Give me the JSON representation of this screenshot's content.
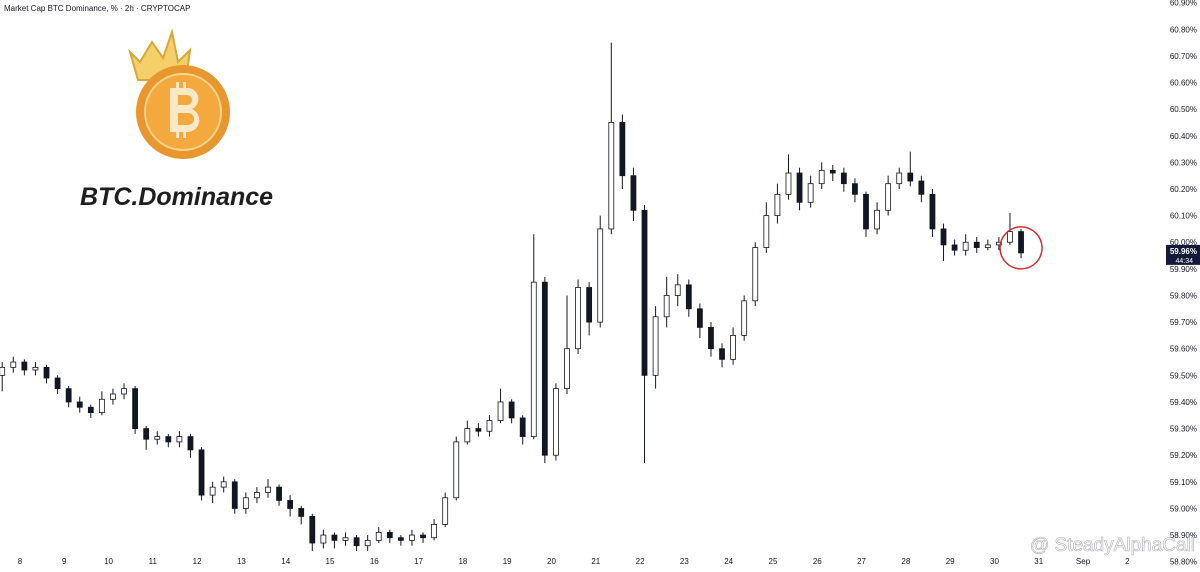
{
  "chart_data": {
    "type": "candlestick",
    "title": "Market Cap BTC Dominance, % · 2h · CRYPTOCAP",
    "logo_text": "BTC.Dominance",
    "last_price": {
      "value": 59.96,
      "label": "59.96%"
    },
    "countdown": "44:34",
    "watermark": "@ SteadyAlphaCall",
    "up_color": "#ffffff",
    "down_color": "#131722",
    "edge_color": "#131722",
    "xlim": [
      7.55,
      33.85
    ],
    "xticks": [
      8,
      9,
      10,
      11,
      12,
      13,
      14,
      15,
      16,
      17,
      18,
      19,
      20,
      21,
      22,
      23,
      24,
      25,
      26,
      27,
      28,
      29,
      30,
      31,
      {
        "value": 32,
        "label": "Sep"
      },
      {
        "value": 33,
        "label": "2"
      }
    ],
    "ylim": [
      58.78,
      60.91
    ],
    "yticks": [
      {
        "value": 58.8,
        "label": "58.80%"
      },
      {
        "value": 58.9,
        "label": "58.90%"
      },
      {
        "value": 59,
        "label": "59.00%"
      },
      {
        "value": 59.1,
        "label": "59.10%"
      },
      {
        "value": 59.2,
        "label": "59.20%"
      },
      {
        "value": 59.3,
        "label": "59.30%"
      },
      {
        "value": 59.4,
        "label": "59.40%"
      },
      {
        "value": 59.5,
        "label": "59.50%"
      },
      {
        "value": 59.6,
        "label": "59.60%"
      },
      {
        "value": 59.7,
        "label": "59.70%"
      },
      {
        "value": 59.8,
        "label": "59.80%"
      },
      {
        "value": 59.9,
        "label": "59.90%"
      },
      {
        "value": 60,
        "label": "60.00%"
      },
      {
        "value": 60.1,
        "label": "60.10%"
      },
      {
        "value": 60.2,
        "label": "60.20%"
      },
      {
        "value": 60.3,
        "label": "60.30%"
      },
      {
        "value": 60.4,
        "label": "60.40%"
      },
      {
        "value": 60.5,
        "label": "60.50%"
      },
      {
        "value": 60.6,
        "label": "60.60%"
      },
      {
        "value": 60.7,
        "label": "60.70%"
      },
      {
        "value": 60.8,
        "label": "60.80%"
      },
      {
        "value": 60.9,
        "label": "60.90%"
      }
    ],
    "x": [
      7.6,
      7.85,
      8.1,
      8.35,
      8.6,
      8.85,
      9.1,
      9.35,
      9.6,
      9.85,
      10.1,
      10.35,
      10.6,
      10.85,
      11.1,
      11.35,
      11.6,
      11.85,
      12.1,
      12.35,
      12.6,
      12.85,
      13.1,
      13.35,
      13.6,
      13.85,
      14.1,
      14.35,
      14.6,
      14.85,
      15.1,
      15.35,
      15.6,
      15.85,
      16.1,
      16.35,
      16.6,
      16.85,
      17.1,
      17.35,
      17.6,
      17.85,
      18.1,
      18.35,
      18.6,
      18.85,
      19.1,
      19.35,
      19.6,
      19.85,
      20.1,
      20.35,
      20.6,
      20.85,
      21.1,
      21.35,
      21.6,
      21.85,
      22.1,
      22.35,
      22.6,
      22.85,
      23.1,
      23.35,
      23.6,
      23.85,
      24.1,
      24.35,
      24.6,
      24.85,
      25.1,
      25.35,
      25.6,
      25.85,
      26.1,
      26.35,
      26.6,
      26.85,
      27.1,
      27.35,
      27.6,
      27.85,
      28.1,
      28.35,
      28.6,
      28.85,
      29.1,
      29.35,
      29.6,
      29.85,
      30.1,
      30.35,
      30.6
    ],
    "open": [
      59.5,
      59.53,
      59.55,
      59.52,
      59.53,
      59.49,
      59.45,
      59.4,
      59.38,
      59.36,
      59.41,
      59.43,
      59.45,
      59.3,
      59.26,
      59.27,
      59.25,
      59.27,
      59.22,
      59.05,
      59.08,
      59.1,
      59.0,
      59.04,
      59.06,
      59.08,
      59.03,
      59.0,
      58.97,
      58.87,
      58.9,
      58.88,
      58.89,
      58.86,
      58.88,
      58.91,
      58.89,
      58.88,
      58.9,
      58.89,
      58.94,
      59.04,
      59.25,
      59.3,
      59.29,
      59.33,
      59.4,
      59.34,
      59.27,
      59.85,
      59.2,
      59.45,
      59.6,
      59.83,
      59.7,
      60.05,
      60.45,
      60.25,
      60.12,
      59.5,
      59.72,
      59.8,
      59.84,
      59.75,
      59.68,
      59.6,
      59.56,
      59.65,
      59.78,
      59.98,
      60.1,
      60.18,
      60.26,
      60.15,
      60.22,
      60.27,
      60.26,
      60.22,
      60.18,
      60.05,
      60.12,
      60.22,
      60.26,
      60.23,
      60.18,
      60.05,
      59.99,
      59.97,
      60.0,
      59.98,
      59.99,
      60.0,
      60.04
    ],
    "high": [
      59.55,
      59.57,
      59.56,
      59.55,
      59.54,
      59.5,
      59.46,
      59.42,
      59.39,
      59.44,
      59.45,
      59.47,
      59.46,
      59.31,
      59.29,
      59.28,
      59.29,
      59.28,
      59.23,
      59.1,
      59.12,
      59.11,
      59.06,
      59.08,
      59.11,
      59.09,
      59.05,
      59.01,
      58.98,
      58.92,
      58.91,
      58.91,
      58.9,
      58.9,
      58.93,
      58.92,
      58.9,
      58.92,
      58.91,
      58.96,
      59.06,
      59.27,
      59.33,
      59.32,
      59.35,
      59.45,
      59.41,
      59.35,
      60.03,
      59.87,
      59.47,
      59.8,
      59.86,
      59.85,
      60.1,
      60.75,
      60.48,
      60.28,
      60.14,
      59.76,
      59.87,
      59.88,
      59.86,
      59.77,
      59.7,
      59.62,
      59.68,
      59.8,
      60.0,
      60.15,
      60.22,
      60.33,
      60.28,
      60.25,
      60.3,
      60.29,
      60.28,
      60.24,
      60.19,
      60.15,
      60.25,
      60.28,
      60.34,
      60.25,
      60.2,
      60.07,
      60.01,
      60.03,
      60.02,
      60.01,
      60.02,
      60.11,
      60.05
    ],
    "low": [
      59.44,
      59.51,
      59.5,
      59.5,
      59.47,
      59.43,
      59.38,
      59.36,
      59.34,
      59.35,
      59.39,
      59.41,
      59.28,
      59.22,
      59.24,
      59.23,
      59.23,
      59.19,
      59.03,
      59.02,
      59.06,
      58.98,
      58.98,
      59.02,
      59.04,
      59.01,
      58.97,
      58.94,
      58.84,
      58.85,
      58.85,
      58.86,
      58.84,
      58.84,
      58.87,
      58.87,
      58.86,
      58.86,
      58.87,
      58.88,
      58.93,
      59.03,
      59.24,
      59.27,
      59.27,
      59.32,
      59.32,
      59.24,
      59.26,
      59.17,
      59.18,
      59.43,
      59.58,
      59.65,
      59.68,
      60.03,
      60.2,
      60.08,
      59.17,
      59.45,
      59.68,
      59.76,
      59.72,
      59.64,
      59.57,
      59.53,
      59.54,
      59.63,
      59.76,
      59.96,
      60.07,
      60.16,
      60.12,
      60.13,
      60.2,
      60.23,
      60.19,
      60.15,
      60.02,
      60.03,
      60.1,
      60.2,
      60.21,
      60.15,
      60.02,
      59.93,
      59.95,
      59.95,
      59.96,
      59.97,
      59.97,
      59.99,
      59.94
    ],
    "close": [
      59.53,
      59.55,
      59.52,
      59.53,
      59.49,
      59.45,
      59.4,
      59.38,
      59.36,
      59.41,
      59.43,
      59.45,
      59.3,
      59.26,
      59.27,
      59.25,
      59.27,
      59.22,
      59.05,
      59.08,
      59.1,
      59.0,
      59.04,
      59.06,
      59.08,
      59.03,
      59.0,
      58.97,
      58.87,
      58.9,
      58.88,
      58.89,
      58.86,
      58.88,
      58.91,
      58.89,
      58.88,
      58.9,
      58.89,
      58.94,
      59.04,
      59.25,
      59.3,
      59.29,
      59.33,
      59.4,
      59.34,
      59.27,
      59.85,
      59.2,
      59.45,
      59.6,
      59.83,
      59.7,
      60.05,
      60.45,
      60.25,
      60.12,
      59.5,
      59.72,
      59.8,
      59.84,
      59.75,
      59.68,
      59.6,
      59.56,
      59.65,
      59.78,
      59.98,
      60.1,
      60.18,
      60.26,
      60.15,
      60.22,
      60.27,
      60.26,
      60.22,
      60.18,
      60.05,
      60.12,
      60.22,
      60.26,
      60.23,
      60.18,
      60.05,
      59.99,
      59.97,
      60.0,
      59.98,
      59.99,
      60.0,
      60.04,
      59.96
    ]
  }
}
